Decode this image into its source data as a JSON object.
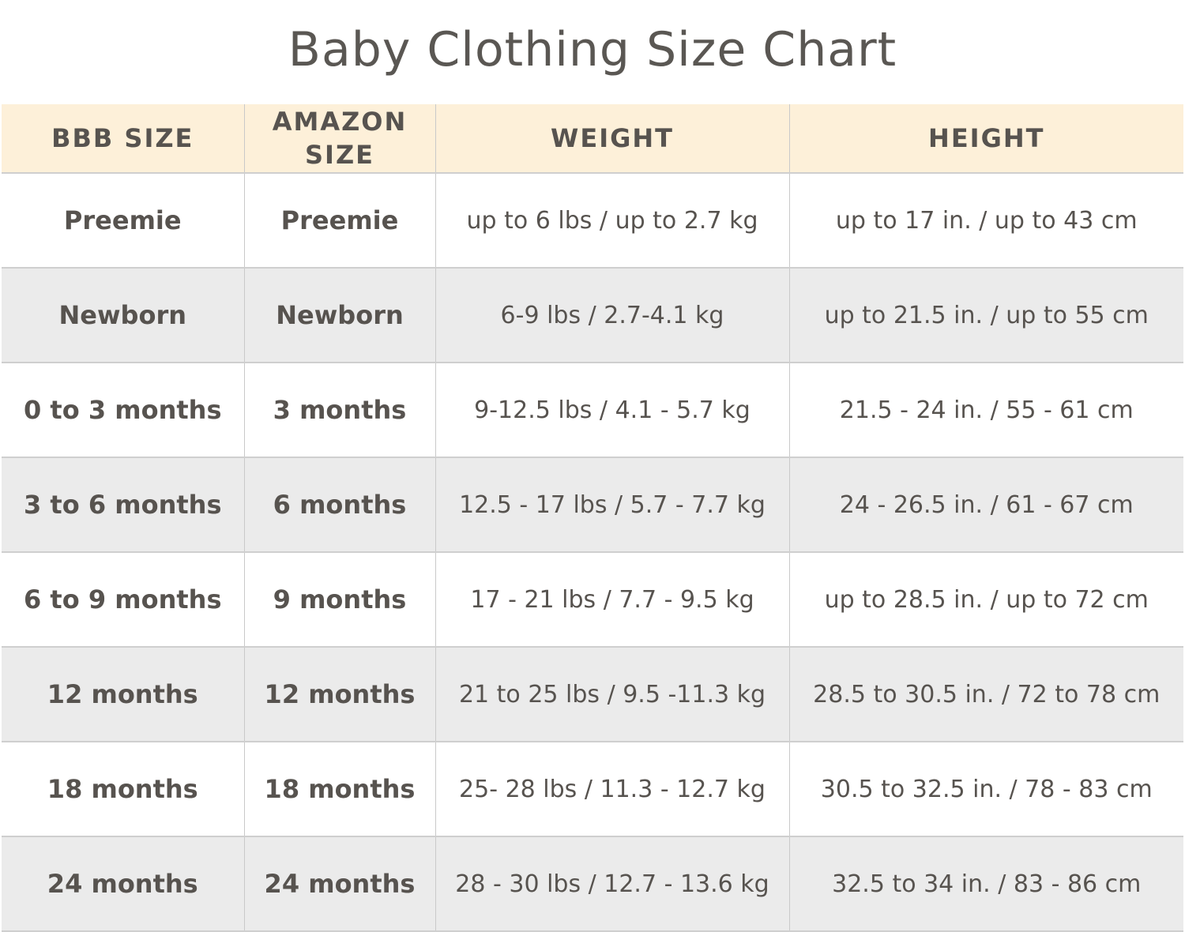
{
  "title": "Baby Clothing Size Chart",
  "colors": {
    "header_bg": "#fdf0d9",
    "alt_row_bg": "#ebebeb",
    "text": "#57534f"
  },
  "table": {
    "headers": [
      "BBB SIZE",
      "AMAZON SIZE",
      "WEIGHT",
      "HEIGHT"
    ],
    "rows": [
      [
        "Preemie",
        "Preemie",
        "up to 6 lbs / up to 2.7 kg",
        "up to 17 in. / up to 43 cm"
      ],
      [
        "Newborn",
        "Newborn",
        "6-9 lbs / 2.7-4.1 kg",
        "up to 21.5 in. / up to 55 cm"
      ],
      [
        "0 to 3 months",
        "3 months",
        "9-12.5 lbs / 4.1 - 5.7 kg",
        "21.5 - 24 in. / 55 - 61 cm"
      ],
      [
        "3 to 6 months",
        "6 months",
        "12.5 - 17 lbs / 5.7 - 7.7 kg",
        "24 - 26.5 in. / 61 - 67 cm"
      ],
      [
        "6 to 9 months",
        "9 months",
        "17 - 21 lbs / 7.7 - 9.5 kg",
        "up to 28.5 in. / up to 72 cm"
      ],
      [
        "12 months",
        "12 months",
        "21 to 25 lbs / 9.5 -11.3 kg",
        "28.5 to 30.5 in. / 72 to 78 cm"
      ],
      [
        "18 months",
        "18 months",
        "25- 28 lbs / 11.3 - 12.7 kg",
        "30.5 to 32.5 in. / 78 - 83 cm"
      ],
      [
        "24 months",
        "24 months",
        "28 - 30 lbs / 12.7 - 13.6 kg",
        "32.5 to 34 in. / 83 - 86 cm"
      ]
    ]
  }
}
